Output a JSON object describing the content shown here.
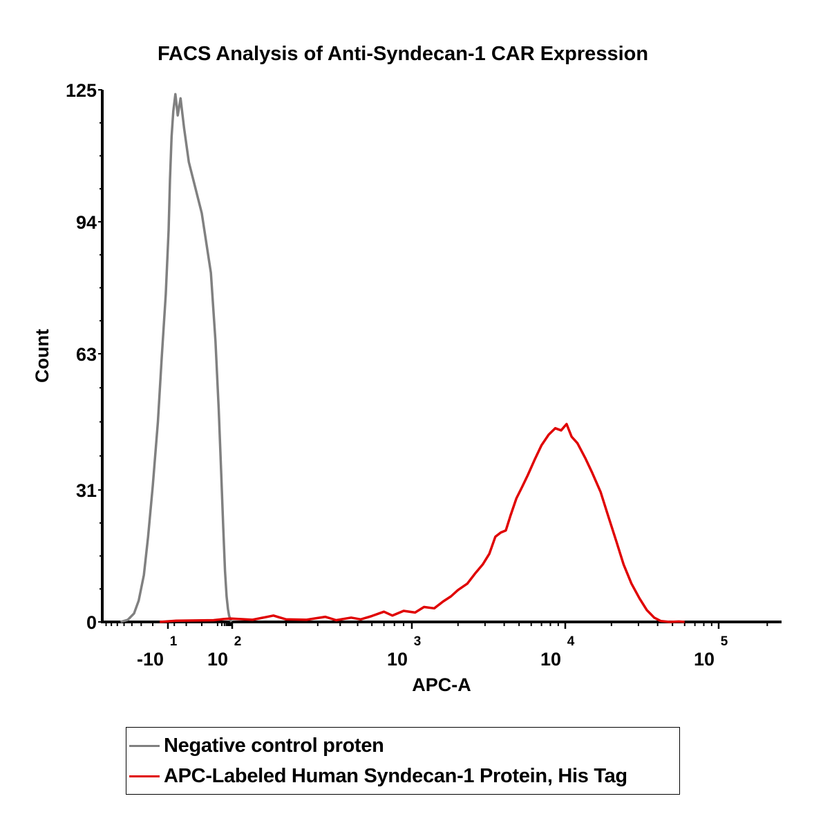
{
  "chart_data": {
    "type": "line",
    "title": "FACS Analysis of Anti-Syndecan-1 CAR Expression",
    "xlabel": "APC-A",
    "ylabel": "Count",
    "xscale": "biexponential",
    "xlim": [
      -40,
      220000
    ],
    "ylim": [
      0,
      125
    ],
    "grid": false,
    "y_ticks": [
      0,
      31,
      63,
      94,
      125
    ],
    "x_ticks": [
      {
        "value": -10,
        "base": "-10",
        "exp": "1"
      },
      {
        "value": 100,
        "base": "10",
        "exp": "2"
      },
      {
        "value": 1000,
        "base": "10",
        "exp": "3"
      },
      {
        "value": 10000,
        "base": "10",
        "exp": "4"
      },
      {
        "value": 100000,
        "base": "10",
        "exp": "5"
      }
    ],
    "legend_position": "bottom",
    "series": [
      {
        "name": "Negative control proten",
        "color": "#808080",
        "points": [
          [
            -28,
            0
          ],
          [
            -24,
            0.5
          ],
          [
            -21,
            2
          ],
          [
            -19,
            5
          ],
          [
            -17,
            11
          ],
          [
            -15.5,
            20
          ],
          [
            -14,
            32
          ],
          [
            -12.5,
            47
          ],
          [
            -11.5,
            62
          ],
          [
            -10.5,
            77
          ],
          [
            -9.5,
            92
          ],
          [
            -8.5,
            104
          ],
          [
            -7.5,
            114
          ],
          [
            -6.5,
            120
          ],
          [
            -5.5,
            124
          ],
          [
            -4.5,
            119
          ],
          [
            -3.5,
            123
          ],
          [
            -2.5,
            116
          ],
          [
            -1.5,
            108
          ],
          [
            0,
            96
          ],
          [
            3,
            82
          ],
          [
            7,
            66
          ],
          [
            12,
            50
          ],
          [
            18,
            35
          ],
          [
            25,
            22
          ],
          [
            33,
            12
          ],
          [
            42,
            6
          ],
          [
            52,
            3
          ],
          [
            62,
            1.5
          ],
          [
            75,
            0.5
          ],
          [
            90,
            0
          ]
        ]
      },
      {
        "name": "APC-Labeled Human Syndecan-1 Protein, His Tag",
        "color": "#e00000",
        "points": [
          [
            -12,
            0
          ],
          [
            -5,
            0.3
          ],
          [
            5,
            0.4
          ],
          [
            30,
            0.7
          ],
          [
            80,
            0.8
          ],
          [
            130,
            0.5
          ],
          [
            170,
            1.5
          ],
          [
            200,
            0.6
          ],
          [
            260,
            0.5
          ],
          [
            330,
            1.2
          ],
          [
            380,
            0.4
          ],
          [
            460,
            1.0
          ],
          [
            520,
            0.6
          ],
          [
            600,
            1.4
          ],
          [
            700,
            2.4
          ],
          [
            780,
            1.5
          ],
          [
            900,
            2.6
          ],
          [
            1050,
            2.2
          ],
          [
            1200,
            3.5
          ],
          [
            1400,
            3.2
          ],
          [
            1600,
            4.8
          ],
          [
            1800,
            6.0
          ],
          [
            2000,
            7.5
          ],
          [
            2300,
            9.0
          ],
          [
            2600,
            11.5
          ],
          [
            2900,
            13.5
          ],
          [
            3200,
            16.0
          ],
          [
            3500,
            20.0
          ],
          [
            3800,
            21.0
          ],
          [
            4100,
            21.5
          ],
          [
            4400,
            25.0
          ],
          [
            4800,
            29.0
          ],
          [
            5200,
            31.5
          ],
          [
            5700,
            34.5
          ],
          [
            6300,
            38.0
          ],
          [
            7000,
            41.5
          ],
          [
            7800,
            44.0
          ],
          [
            8600,
            45.5
          ],
          [
            9400,
            45.0
          ],
          [
            10200,
            46.5
          ],
          [
            11000,
            43.5
          ],
          [
            12000,
            42.0
          ],
          [
            13500,
            38.5
          ],
          [
            15000,
            35.0
          ],
          [
            17000,
            30.5
          ],
          [
            19000,
            25.0
          ],
          [
            21500,
            19.0
          ],
          [
            24000,
            13.5
          ],
          [
            27000,
            9.0
          ],
          [
            30500,
            5.5
          ],
          [
            34000,
            2.8
          ],
          [
            38000,
            1.0
          ],
          [
            42000,
            0.2
          ],
          [
            48000,
            0
          ],
          [
            55000,
            0.1
          ],
          [
            60000,
            0
          ]
        ]
      }
    ]
  },
  "legend": {
    "items": [
      {
        "label": "Negative control proten",
        "color": "#808080"
      },
      {
        "label": "APC-Labeled Human Syndecan-1 Protein, His Tag",
        "color": "#e00000"
      }
    ]
  }
}
